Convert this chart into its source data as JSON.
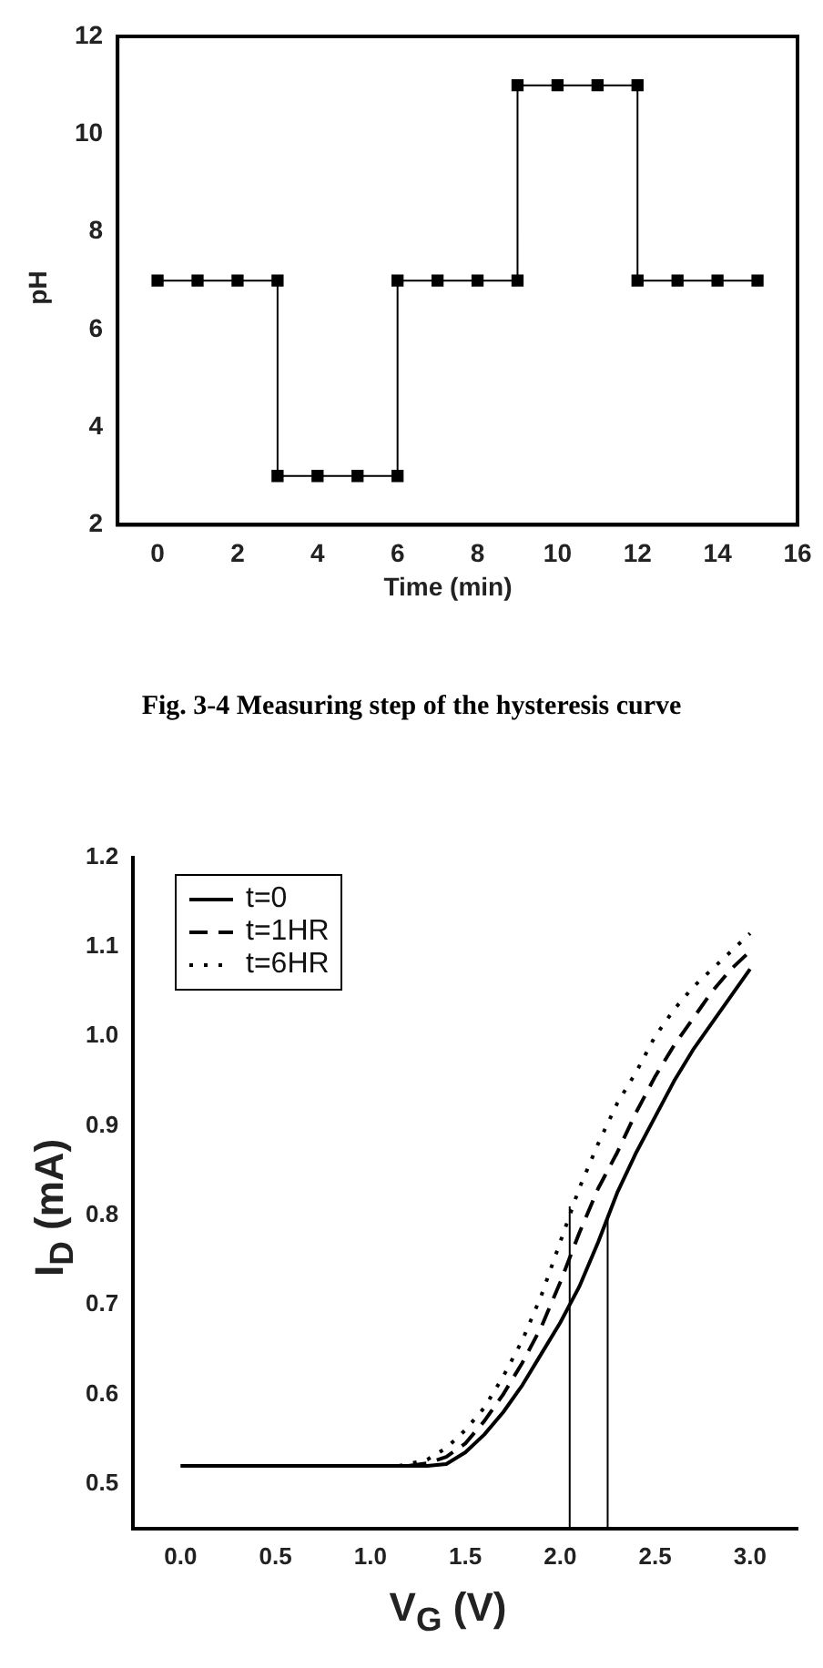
{
  "chart_data": [
    {
      "type": "line",
      "xlabel": "Time (min)",
      "ylabel": "pH",
      "marker": "square",
      "line_style": "solid",
      "grid": false,
      "legend": false,
      "xlim": [
        -1,
        16
      ],
      "xticks": [
        0,
        2,
        4,
        6,
        8,
        10,
        12,
        14,
        16
      ],
      "ylim": [
        2,
        12
      ],
      "yticks": [
        2,
        4,
        6,
        8,
        10,
        12
      ],
      "annotations": [
        "Fig. 3-4 Measuring step of the hysteresis curve"
      ],
      "series": [
        {
          "color": "#000000",
          "x": [
            0,
            1,
            2,
            3,
            3,
            4,
            5,
            6,
            6,
            7,
            8,
            9,
            9,
            10,
            11,
            12,
            12,
            13,
            14,
            15
          ],
          "values": [
            7,
            7,
            7,
            7,
            3,
            3,
            3,
            3,
            7,
            7,
            7,
            7,
            11,
            11,
            11,
            11,
            7,
            7,
            7,
            7
          ]
        }
      ]
    },
    {
      "type": "line",
      "xlabel": "V$_{G}$ (V)",
      "ylabel": "I$_{D}$ (mA)",
      "marker": "none",
      "grid": false,
      "legend": "top left",
      "xlim": [
        -0.25,
        3.25
      ],
      "xticks": [
        {
          "value": 0,
          "label": "0.0"
        },
        0.5,
        {
          "value": 1,
          "label": "1.0"
        },
        1.5,
        {
          "value": 2,
          "label": "2.0"
        },
        2.5,
        {
          "value": 3,
          "label": "3.0"
        }
      ],
      "ylim": [
        0.45,
        1.2
      ],
      "yticks": [
        0.5,
        0.6,
        0.7,
        0.8,
        0.9,
        {
          "value": 1,
          "label": "1.0"
        },
        1.1,
        1.2
      ],
      "series": [
        {
          "name": "t=0",
          "color": "#000000",
          "line_style": "solid",
          "x": [
            0,
            0.5,
            1,
            1.3,
            1.4,
            1.5,
            1.6,
            1.7,
            1.8,
            1.9,
            2,
            2.1,
            2.2,
            2.3,
            2.4,
            2.5,
            2.6,
            2.7,
            2.8,
            2.9,
            3
          ],
          "values": [
            0.52,
            0.52,
            0.52,
            0.52,
            0.522,
            0.535,
            0.555,
            0.58,
            0.61,
            0.645,
            0.68,
            0.72,
            0.77,
            0.825,
            0.87,
            0.91,
            0.95,
            0.985,
            1.015,
            1.045,
            1.075
          ]
        },
        {
          "name": "t=1HR",
          "color": "#000000",
          "line_style": "dashed",
          "x": [
            1.2,
            1.3,
            1.4,
            1.5,
            1.6,
            1.7,
            1.8,
            1.9,
            2,
            2.1,
            2.2,
            2.3,
            2.4,
            2.5,
            2.6,
            2.7,
            2.8,
            2.9,
            3
          ],
          "values": [
            0.52,
            0.523,
            0.53,
            0.545,
            0.57,
            0.6,
            0.635,
            0.675,
            0.725,
            0.78,
            0.83,
            0.87,
            0.915,
            0.955,
            0.99,
            1.02,
            1.05,
            1.075,
            1.095
          ]
        },
        {
          "name": "t=6HR",
          "color": "#000000",
          "line_style": "dotted",
          "x": [
            1.15,
            1.2,
            1.3,
            1.4,
            1.5,
            1.6,
            1.7,
            1.8,
            1.9,
            2,
            2.1,
            2.2,
            2.3,
            2.4,
            2.5,
            2.6,
            2.7,
            2.8,
            2.9,
            3
          ],
          "values": [
            0.52,
            0.522,
            0.527,
            0.54,
            0.56,
            0.585,
            0.62,
            0.66,
            0.71,
            0.77,
            0.83,
            0.88,
            0.925,
            0.96,
            1,
            1.03,
            1.055,
            1.075,
            1.095,
            1.115
          ]
        },
        {
          "color": "#000000",
          "line_style": "solid",
          "x": [
            2.05,
            2.05
          ],
          "values": [
            0.45,
            0.81
          ]
        },
        {
          "color": "#000000",
          "line_style": "solid",
          "x": [
            2.25,
            2.25
          ],
          "values": [
            0.45,
            0.8
          ]
        }
      ]
    }
  ]
}
